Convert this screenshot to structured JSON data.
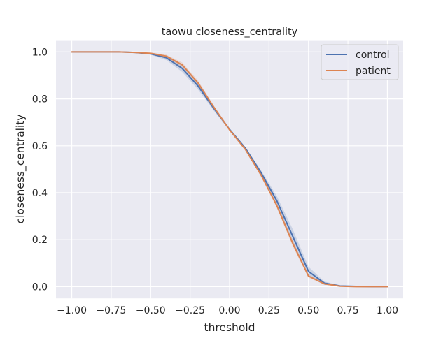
{
  "chart_data": {
    "type": "line",
    "title": "taowu closeness_centrality",
    "xlabel": "threshold",
    "ylabel": "closeness_centrality",
    "xlim": [
      -1.1,
      1.1
    ],
    "ylim": [
      -0.05,
      1.05
    ],
    "xticks": [
      -1.0,
      -0.75,
      -0.5,
      -0.25,
      0.0,
      0.25,
      0.5,
      0.75,
      1.0
    ],
    "xtick_labels": [
      "−1.00",
      "−0.75",
      "−0.50",
      "−0.25",
      "0.00",
      "0.25",
      "0.50",
      "0.75",
      "1.00"
    ],
    "yticks": [
      0.0,
      0.2,
      0.4,
      0.6,
      0.8,
      1.0
    ],
    "ytick_labels": [
      "0.0",
      "0.2",
      "0.4",
      "0.6",
      "0.8",
      "1.0"
    ],
    "grid": true,
    "legend_position": "top-right",
    "colors": {
      "background": "#eaeaf2",
      "grid": "#ffffff",
      "control": "#4c72b0",
      "patient": "#dd8452"
    },
    "x": [
      -1.0,
      -0.9,
      -0.8,
      -0.7,
      -0.6,
      -0.5,
      -0.4,
      -0.3,
      -0.2,
      -0.1,
      0.0,
      0.1,
      0.2,
      0.3,
      0.4,
      0.5,
      0.6,
      0.7,
      0.8,
      0.9,
      1.0
    ],
    "series": [
      {
        "name": "control",
        "color": "#4c72b0",
        "values": [
          1.0,
          1.0,
          1.0,
          1.0,
          0.998,
          0.992,
          0.975,
          0.93,
          0.855,
          0.76,
          0.67,
          0.59,
          0.485,
          0.365,
          0.215,
          0.065,
          0.015,
          0.003,
          0.001,
          0.0,
          0.0
        ],
        "band_lower": [
          1.0,
          1.0,
          1.0,
          0.999,
          0.996,
          0.988,
          0.965,
          0.915,
          0.84,
          0.75,
          0.665,
          0.585,
          0.475,
          0.345,
          0.185,
          0.045,
          0.008,
          0.001,
          0.0,
          0.0,
          0.0
        ],
        "band_upper": [
          1.0,
          1.0,
          1.0,
          1.0,
          1.0,
          0.996,
          0.985,
          0.945,
          0.87,
          0.77,
          0.675,
          0.595,
          0.495,
          0.385,
          0.245,
          0.085,
          0.022,
          0.005,
          0.002,
          0.001,
          0.0
        ]
      },
      {
        "name": "patient",
        "color": "#dd8452",
        "values": [
          1.0,
          1.0,
          1.0,
          1.0,
          0.998,
          0.994,
          0.982,
          0.945,
          0.868,
          0.765,
          0.668,
          0.585,
          0.475,
          0.345,
          0.185,
          0.045,
          0.012,
          0.002,
          0.0,
          0.0,
          0.0
        ],
        "band_lower": [
          1.0,
          1.0,
          1.0,
          1.0,
          0.997,
          0.99,
          0.976,
          0.935,
          0.858,
          0.758,
          0.664,
          0.58,
          0.468,
          0.335,
          0.172,
          0.038,
          0.009,
          0.001,
          0.0,
          0.0,
          0.0
        ],
        "band_upper": [
          1.0,
          1.0,
          1.0,
          1.0,
          0.999,
          0.997,
          0.988,
          0.955,
          0.878,
          0.772,
          0.672,
          0.59,
          0.482,
          0.355,
          0.198,
          0.052,
          0.015,
          0.003,
          0.001,
          0.0,
          0.0
        ]
      }
    ]
  }
}
